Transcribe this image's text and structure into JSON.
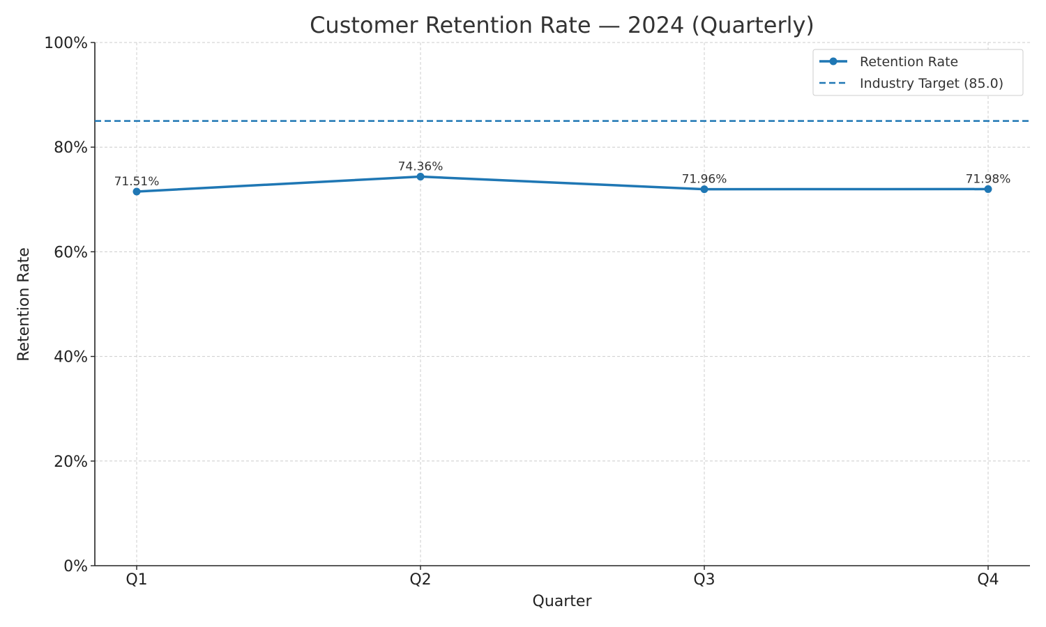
{
  "chart_data": {
    "type": "line",
    "title": "Customer Retention Rate — 2024 (Quarterly)",
    "xlabel": "Quarter",
    "ylabel": "Retention Rate",
    "categories": [
      "Q1",
      "Q2",
      "Q3",
      "Q4"
    ],
    "series": [
      {
        "name": "Retention Rate",
        "values": [
          71.51,
          74.36,
          71.96,
          71.98
        ],
        "data_labels": [
          "71.51%",
          "74.36%",
          "71.96%",
          "71.98%"
        ],
        "color": "#1f77b4",
        "style": "solid",
        "markers": true
      }
    ],
    "reference_lines": [
      {
        "name": "Industry Target (85.0)",
        "value": 85.0,
        "color": "#1f77b4",
        "style": "dashed"
      }
    ],
    "y_ticks": [
      0,
      20,
      40,
      60,
      80,
      100
    ],
    "y_tick_labels": [
      "0%",
      "20%",
      "40%",
      "60%",
      "80%",
      "100%"
    ],
    "ylim": [
      0,
      100
    ],
    "grid": true,
    "legend_position": "top-right",
    "colors": {
      "series": "#1f77b4",
      "grid": "#cccccc",
      "axis": "#222222",
      "text": "#333333"
    }
  }
}
